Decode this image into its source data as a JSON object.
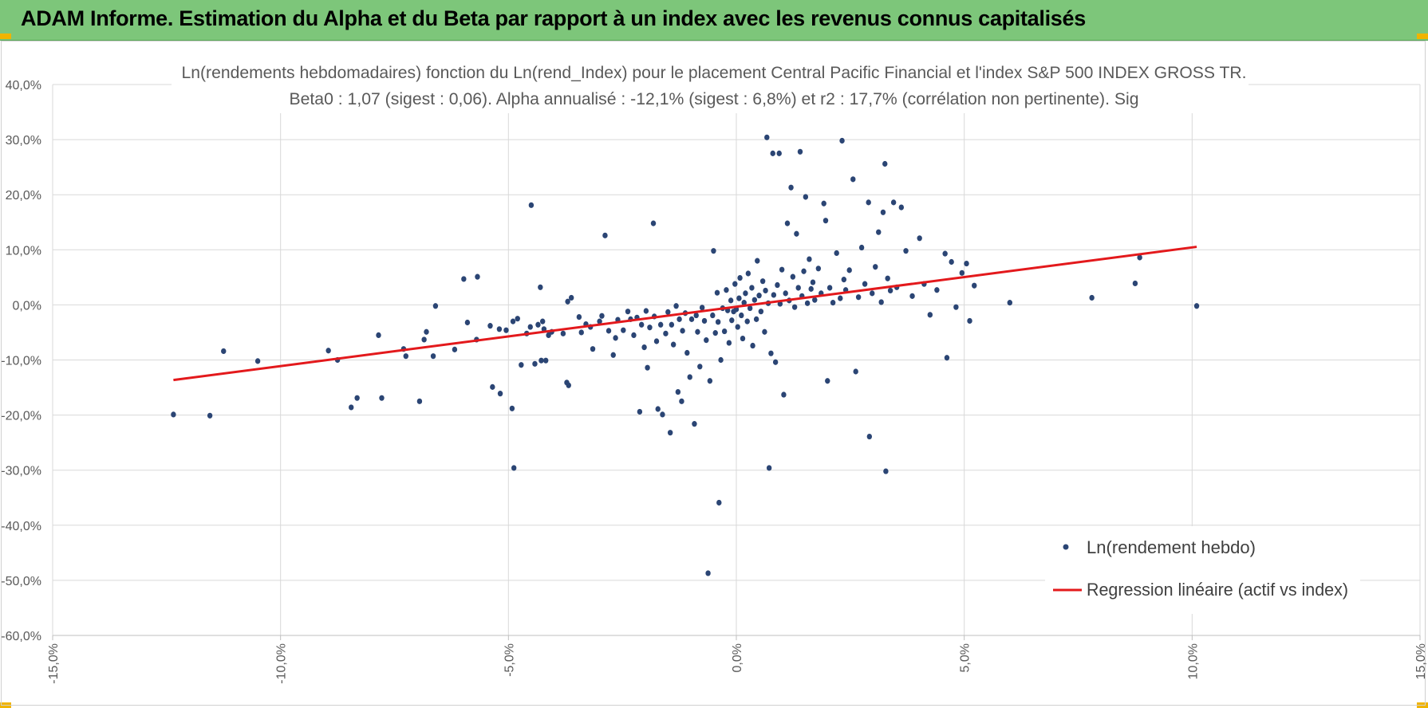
{
  "banner": {
    "title": "ADAM Informe. Estimation du Alpha et du Beta par rapport à un index avec les revenus connus capitalisés"
  },
  "colors": {
    "banner_bg": "#7dc67a",
    "accent": "#f0b400",
    "points": "#2b4574",
    "regression": "#e3191c",
    "grid": "#d9d9d9"
  },
  "chart_data": {
    "type": "scatter",
    "title_line1": "Ln(rendements hebdomadaires) fonction du Ln(rend_Index) pour le placement Central Pacific Financial et l'index S&P 500 INDEX GROSS TR.",
    "title_line2": "Beta0 : 1,07 (sigest : 0,06). Alpha annualisé : -12,1% (sigest : 6,8%) et r2 : 17,7% (corrélation non pertinente). Sig",
    "xlim": [
      -0.15,
      0.15
    ],
    "ylim": [
      -0.6,
      0.4
    ],
    "x_ticks": [
      -0.15,
      -0.1,
      -0.05,
      0.0,
      0.05,
      0.1,
      0.15
    ],
    "x_tick_labels": [
      "-15,0%",
      "-10,0%",
      "-5,0%",
      "0,0%",
      "5,0%",
      "10,0%",
      "15,0%"
    ],
    "y_ticks": [
      0.4,
      0.3,
      0.2,
      0.1,
      0.0,
      -0.1,
      -0.2,
      -0.3,
      -0.4,
      -0.5,
      -0.6
    ],
    "y_tick_labels": [
      "40,0%",
      "30,0%",
      "20,0%",
      "10,0%",
      "0,0%",
      "-10,0%",
      "-20,0%",
      "-30,0%",
      "-40,0%",
      "-50,0%",
      "-60,0%"
    ],
    "grid": true,
    "legend_position": "bottom-right",
    "series": [
      {
        "name": "Ln(rendement hebdo)",
        "kind": "scatter",
        "points": [
          [
            -0.1235,
            -0.199
          ],
          [
            -0.1155,
            -0.201
          ],
          [
            -0.1125,
            -0.084
          ],
          [
            -0.105,
            -0.102
          ],
          [
            -0.0895,
            -0.083
          ],
          [
            -0.0875,
            -0.1
          ],
          [
            -0.0845,
            -0.186
          ],
          [
            -0.0832,
            -0.169
          ],
          [
            -0.0778,
            -0.169
          ],
          [
            -0.0785,
            -0.055
          ],
          [
            -0.073,
            -0.08
          ],
          [
            -0.0725,
            -0.093
          ],
          [
            -0.0695,
            -0.175
          ],
          [
            -0.0685,
            -0.063
          ],
          [
            -0.068,
            -0.049
          ],
          [
            -0.0665,
            -0.093
          ],
          [
            -0.066,
            -0.002
          ],
          [
            -0.0618,
            -0.081
          ],
          [
            -0.0598,
            0.047
          ],
          [
            -0.059,
            -0.032
          ],
          [
            -0.057,
            -0.063
          ],
          [
            -0.0568,
            0.051
          ],
          [
            -0.054,
            -0.038
          ],
          [
            -0.0535,
            -0.149
          ],
          [
            -0.052,
            -0.044
          ],
          [
            -0.0518,
            -0.161
          ],
          [
            -0.0505,
            -0.046
          ],
          [
            -0.0492,
            -0.188
          ],
          [
            -0.049,
            -0.03
          ],
          [
            -0.0488,
            -0.296
          ],
          [
            -0.048,
            -0.025
          ],
          [
            -0.0472,
            -0.109
          ],
          [
            -0.046,
            -0.052
          ],
          [
            -0.0452,
            -0.04
          ],
          [
            -0.045,
            0.181
          ],
          [
            -0.0442,
            -0.107
          ],
          [
            -0.0435,
            -0.036
          ],
          [
            -0.043,
            0.032
          ],
          [
            -0.0428,
            -0.101
          ],
          [
            -0.0425,
            -0.03
          ],
          [
            -0.0422,
            -0.044
          ],
          [
            -0.0418,
            -0.101
          ],
          [
            -0.0412,
            -0.055
          ],
          [
            -0.0405,
            -0.049
          ],
          [
            -0.038,
            -0.052
          ],
          [
            -0.0372,
            -0.141
          ],
          [
            -0.037,
            0.006
          ],
          [
            -0.0368,
            -0.146
          ],
          [
            -0.0362,
            0.013
          ],
          [
            -0.0345,
            -0.022
          ],
          [
            -0.034,
            -0.05
          ],
          [
            -0.033,
            -0.035
          ],
          [
            -0.032,
            -0.04
          ],
          [
            -0.0315,
            -0.08
          ],
          [
            -0.03,
            -0.03
          ],
          [
            -0.0295,
            -0.02
          ],
          [
            -0.0288,
            0.126
          ],
          [
            -0.028,
            -0.047
          ],
          [
            -0.027,
            -0.091
          ],
          [
            -0.0265,
            -0.06
          ],
          [
            -0.026,
            -0.027
          ],
          [
            -0.0248,
            -0.046
          ],
          [
            -0.0238,
            -0.012
          ],
          [
            -0.0232,
            -0.026
          ],
          [
            -0.0225,
            -0.055
          ],
          [
            -0.0218,
            -0.023
          ],
          [
            -0.0212,
            -0.194
          ],
          [
            -0.0208,
            -0.036
          ],
          [
            -0.0202,
            -0.077
          ],
          [
            -0.0198,
            -0.011
          ],
          [
            -0.0195,
            -0.114
          ],
          [
            -0.019,
            -0.041
          ],
          [
            -0.0182,
            0.148
          ],
          [
            -0.018,
            -0.021
          ],
          [
            -0.0175,
            -0.066
          ],
          [
            -0.0172,
            -0.189
          ],
          [
            -0.0166,
            -0.036
          ],
          [
            -0.0162,
            -0.199
          ],
          [
            -0.0155,
            -0.052
          ],
          [
            -0.015,
            -0.013
          ],
          [
            -0.0145,
            -0.232
          ],
          [
            -0.0142,
            -0.036
          ],
          [
            -0.0138,
            -0.072
          ],
          [
            -0.0132,
            -0.002
          ],
          [
            -0.0128,
            -0.158
          ],
          [
            -0.0125,
            -0.026
          ],
          [
            -0.012,
            -0.175
          ],
          [
            -0.0118,
            -0.047
          ],
          [
            -0.0112,
            -0.015
          ],
          [
            -0.0108,
            -0.087
          ],
          [
            -0.0102,
            -0.131
          ],
          [
            -0.0098,
            -0.026
          ],
          [
            -0.0092,
            -0.216
          ],
          [
            -0.0088,
            -0.019
          ],
          [
            -0.0085,
            -0.049
          ],
          [
            -0.008,
            -0.112
          ],
          [
            -0.0075,
            -0.005
          ],
          [
            -0.007,
            -0.029
          ],
          [
            -0.0066,
            -0.064
          ],
          [
            -0.0062,
            -0.487
          ],
          [
            -0.0058,
            -0.138
          ],
          [
            -0.0052,
            -0.019
          ],
          [
            -0.005,
            0.098
          ],
          [
            -0.0046,
            -0.051
          ],
          [
            -0.0042,
            0.022
          ],
          [
            -0.004,
            -0.031
          ],
          [
            -0.0038,
            -0.359
          ],
          [
            -0.0034,
            -0.1
          ],
          [
            -0.003,
            -0.006
          ],
          [
            -0.0026,
            -0.048
          ],
          [
            -0.0022,
            0.027
          ],
          [
            -0.0019,
            -0.01
          ],
          [
            -0.0016,
            -0.069
          ],
          [
            -0.0012,
            0.008
          ],
          [
            -0.001,
            -0.028
          ],
          [
            -0.0006,
            -0.012
          ],
          [
            -0.0003,
            0.038
          ],
          [
            0.0,
            -0.008
          ],
          [
            0.0003,
            -0.04
          ],
          [
            0.0006,
            0.012
          ],
          [
            0.0008,
            0.049
          ],
          [
            0.0011,
            -0.019
          ],
          [
            0.0014,
            -0.061
          ],
          [
            0.0017,
            0.004
          ],
          [
            0.002,
            0.021
          ],
          [
            0.0024,
            -0.03
          ],
          [
            0.0026,
            0.057
          ],
          [
            0.003,
            -0.006
          ],
          [
            0.0034,
            0.031
          ],
          [
            0.0036,
            -0.074
          ],
          [
            0.004,
            0.009
          ],
          [
            0.0044,
            -0.026
          ],
          [
            0.0046,
            0.08
          ],
          [
            0.005,
            0.017
          ],
          [
            0.0054,
            -0.012
          ],
          [
            0.0058,
            0.043
          ],
          [
            0.0062,
            -0.049
          ],
          [
            0.0064,
            0.026
          ],
          [
            0.0067,
            0.304
          ],
          [
            0.007,
            0.003
          ],
          [
            0.0072,
            -0.296
          ],
          [
            0.0076,
            -0.088
          ],
          [
            0.008,
            0.275
          ],
          [
            0.0082,
            0.018
          ],
          [
            0.0086,
            -0.104
          ],
          [
            0.009,
            0.036
          ],
          [
            0.0094,
            0.275
          ],
          [
            0.0096,
            0.002
          ],
          [
            0.01,
            0.064
          ],
          [
            0.0104,
            -0.163
          ],
          [
            0.0108,
            0.021
          ],
          [
            0.0112,
            0.148
          ],
          [
            0.0116,
            0.008
          ],
          [
            0.012,
            0.213
          ],
          [
            0.0124,
            0.051
          ],
          [
            0.0128,
            -0.004
          ],
          [
            0.0132,
            0.129
          ],
          [
            0.0136,
            0.031
          ],
          [
            0.014,
            0.278
          ],
          [
            0.0144,
            0.016
          ],
          [
            0.0148,
            0.061
          ],
          [
            0.0152,
            0.196
          ],
          [
            0.0156,
            0.003
          ],
          [
            0.016,
            0.083
          ],
          [
            0.0164,
            0.029
          ],
          [
            0.0168,
            0.041
          ],
          [
            0.0172,
            0.009
          ],
          [
            0.018,
            0.066
          ],
          [
            0.0186,
            0.021
          ],
          [
            0.0192,
            0.184
          ],
          [
            0.0196,
            0.153
          ],
          [
            0.02,
            -0.138
          ],
          [
            0.0205,
            0.031
          ],
          [
            0.0212,
            0.004
          ],
          [
            0.022,
            0.094
          ],
          [
            0.0228,
            0.012
          ],
          [
            0.0232,
            0.298
          ],
          [
            0.0236,
            0.046
          ],
          [
            0.024,
            0.027
          ],
          [
            0.0248,
            0.063
          ],
          [
            0.0256,
            0.228
          ],
          [
            0.0262,
            -0.121
          ],
          [
            0.0268,
            0.014
          ],
          [
            0.0275,
            0.104
          ],
          [
            0.0282,
            0.038
          ],
          [
            0.029,
            0.186
          ],
          [
            0.0292,
            -0.239
          ],
          [
            0.0298,
            0.021
          ],
          [
            0.0305,
            0.069
          ],
          [
            0.0312,
            0.132
          ],
          [
            0.0318,
            0.005
          ],
          [
            0.0322,
            0.168
          ],
          [
            0.0326,
            0.256
          ],
          [
            0.0328,
            -0.302
          ],
          [
            0.0332,
            0.048
          ],
          [
            0.0338,
            0.026
          ],
          [
            0.0345,
            0.186
          ],
          [
            0.0352,
            0.032
          ],
          [
            0.0362,
            0.177
          ],
          [
            0.0372,
            0.098
          ],
          [
            0.0386,
            0.016
          ],
          [
            0.0402,
            0.121
          ],
          [
            0.0412,
            0.038
          ],
          [
            0.0425,
            -0.018
          ],
          [
            0.044,
            0.027
          ],
          [
            0.0458,
            0.093
          ],
          [
            0.0462,
            -0.096
          ],
          [
            0.0472,
            0.078
          ],
          [
            0.0482,
            -0.004
          ],
          [
            0.0495,
            0.058
          ],
          [
            0.0505,
            0.075
          ],
          [
            0.0512,
            -0.029
          ],
          [
            0.0522,
            0.035
          ],
          [
            0.06,
            0.004
          ],
          [
            0.078,
            0.013
          ],
          [
            0.0875,
            0.039
          ],
          [
            0.0885,
            0.086
          ],
          [
            0.101,
            -0.002
          ]
        ]
      },
      {
        "name": "Regression linéaire (actif vs index)",
        "kind": "line",
        "x": [
          -0.1235,
          0.101
        ],
        "y": [
          -0.1364,
          0.1054
        ]
      }
    ]
  }
}
